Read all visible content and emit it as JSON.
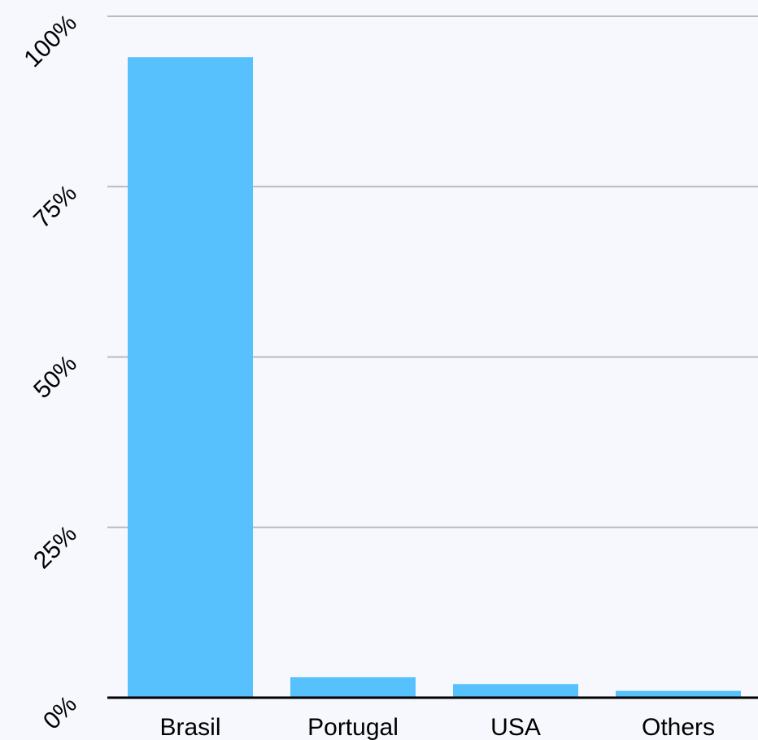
{
  "chart_data": {
    "type": "bar",
    "categories": [
      "Brasil",
      "Portugal",
      "USA",
      "Others"
    ],
    "values": [
      94,
      3,
      2,
      1
    ],
    "ylim": [
      0,
      100
    ],
    "yticks": [
      {
        "value": 0,
        "label": "0%"
      },
      {
        "value": 25,
        "label": "25%"
      },
      {
        "value": 50,
        "label": "50%"
      },
      {
        "value": 75,
        "label": "75%"
      },
      {
        "value": 100,
        "label": "100%"
      }
    ],
    "grid": true,
    "colors": {
      "bar": "#57c1fd",
      "grid": "#b9bac0",
      "axis": "#000000",
      "background": "#f7f8fd"
    }
  }
}
